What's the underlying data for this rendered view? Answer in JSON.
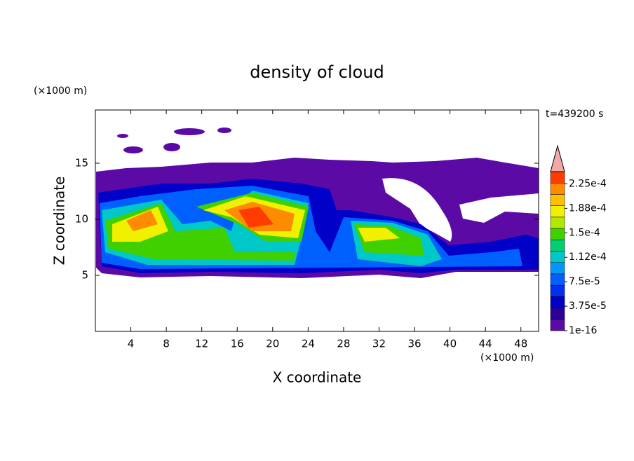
{
  "chart_data": {
    "type": "contour",
    "title": "density of cloud",
    "xlabel": "X coordinate",
    "ylabel": "Z coordinate",
    "x_unit": "(×1000 m)",
    "y_unit": "(×1000 m)",
    "time_label": "t=439200 s",
    "xlim": [
      0,
      50
    ],
    "xticks": [
      4,
      8,
      12,
      16,
      20,
      24,
      28,
      32,
      36,
      40,
      44,
      48
    ],
    "ylim": [
      0,
      19.75
    ],
    "yticks": [
      5,
      10,
      15
    ],
    "colorbar": {
      "clim": [
        1e-16,
        0.00024375
      ],
      "ticks": [
        1e-16,
        {
          "value": 3.75e-05,
          "label": "3.75e-5"
        },
        {
          "value": 7.5e-05,
          "label": "7.5e-5"
        },
        {
          "value": 0.0001125,
          "label": "1.12e-4"
        },
        {
          "value": 0.00015,
          "label": "1.5e-4"
        },
        {
          "value": 0.0001875,
          "label": "1.88e-4"
        },
        {
          "value": 0.000225,
          "label": "2.25e-4"
        }
      ],
      "colors": [
        "#5c0aa6",
        "#2a0096",
        "#0000c8",
        "#0030f0",
        "#0060ff",
        "#0098ff",
        "#00c8c8",
        "#00d070",
        "#40d000",
        "#b0e800",
        "#f0f000",
        "#ffc000",
        "#ff8c00",
        "#ff3c00"
      ],
      "extend_color": "#f0a8a8"
    }
  }
}
